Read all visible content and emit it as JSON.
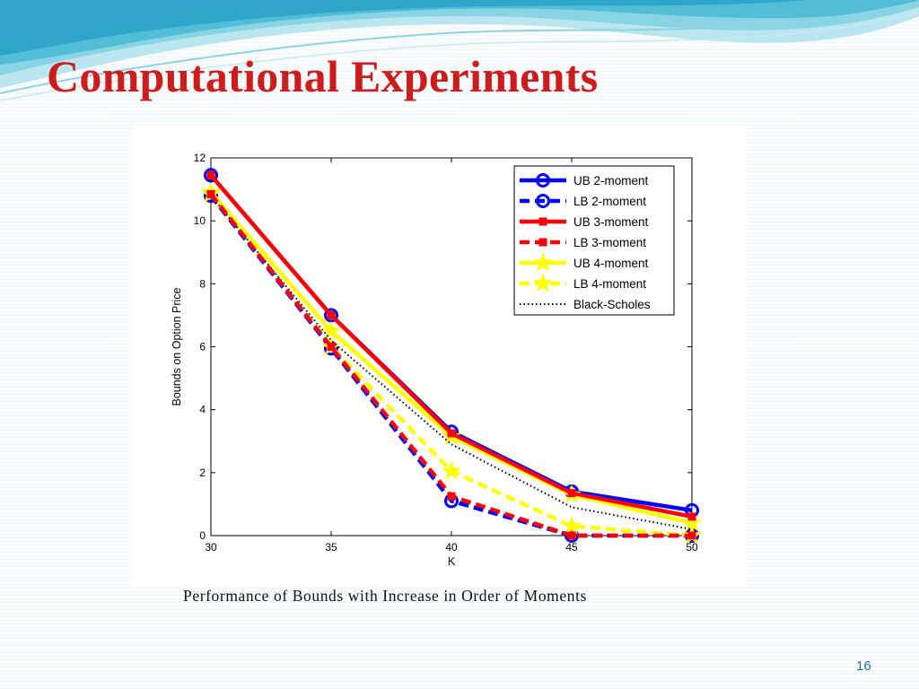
{
  "slide": {
    "title": "Computational Experiments",
    "caption": "Performance of Bounds with Increase in Order of Moments",
    "page_number": "16"
  },
  "chart_data": {
    "type": "line",
    "title": "",
    "xlabel": "K",
    "ylabel": "Bounds on Option Price",
    "x": [
      30,
      35,
      40,
      45,
      50
    ],
    "xlim": [
      30,
      50
    ],
    "ylim": [
      0,
      12
    ],
    "xticks": [
      30,
      35,
      40,
      45,
      50
    ],
    "yticks": [
      0,
      2,
      4,
      6,
      8,
      10,
      12
    ],
    "grid": false,
    "legend_position": "top-right",
    "series": [
      {
        "name": "UB 2-moment",
        "values": [
          11.45,
          7.0,
          3.3,
          1.4,
          0.8
        ],
        "color": "#0000ff",
        "style": "solid",
        "marker": "circle"
      },
      {
        "name": "LB 2-moment",
        "values": [
          10.8,
          5.95,
          1.1,
          0.0,
          0.0
        ],
        "color": "#0000ff",
        "style": "dashed",
        "marker": "circle"
      },
      {
        "name": "UB 3-moment",
        "values": [
          11.45,
          7.0,
          3.25,
          1.35,
          0.6
        ],
        "color": "#ff0000",
        "style": "solid",
        "marker": "square"
      },
      {
        "name": "LB 3-moment",
        "values": [
          10.85,
          6.0,
          1.25,
          0.0,
          0.0
        ],
        "color": "#ff0000",
        "style": "dashed",
        "marker": "square"
      },
      {
        "name": "UB 4-moment",
        "values": [
          10.9,
          6.5,
          3.15,
          1.3,
          0.4
        ],
        "color": "#ffff00",
        "style": "solid",
        "marker": "star"
      },
      {
        "name": "LB 4-moment",
        "values": [
          10.85,
          6.0,
          2.05,
          0.3,
          0.0
        ],
        "color": "#ffff00",
        "style": "dashed",
        "marker": "star"
      },
      {
        "name": "Black-Scholes",
        "values": [
          10.8,
          6.2,
          2.9,
          0.9,
          0.2
        ],
        "color": "#000000",
        "style": "dotted",
        "marker": "none"
      }
    ]
  }
}
